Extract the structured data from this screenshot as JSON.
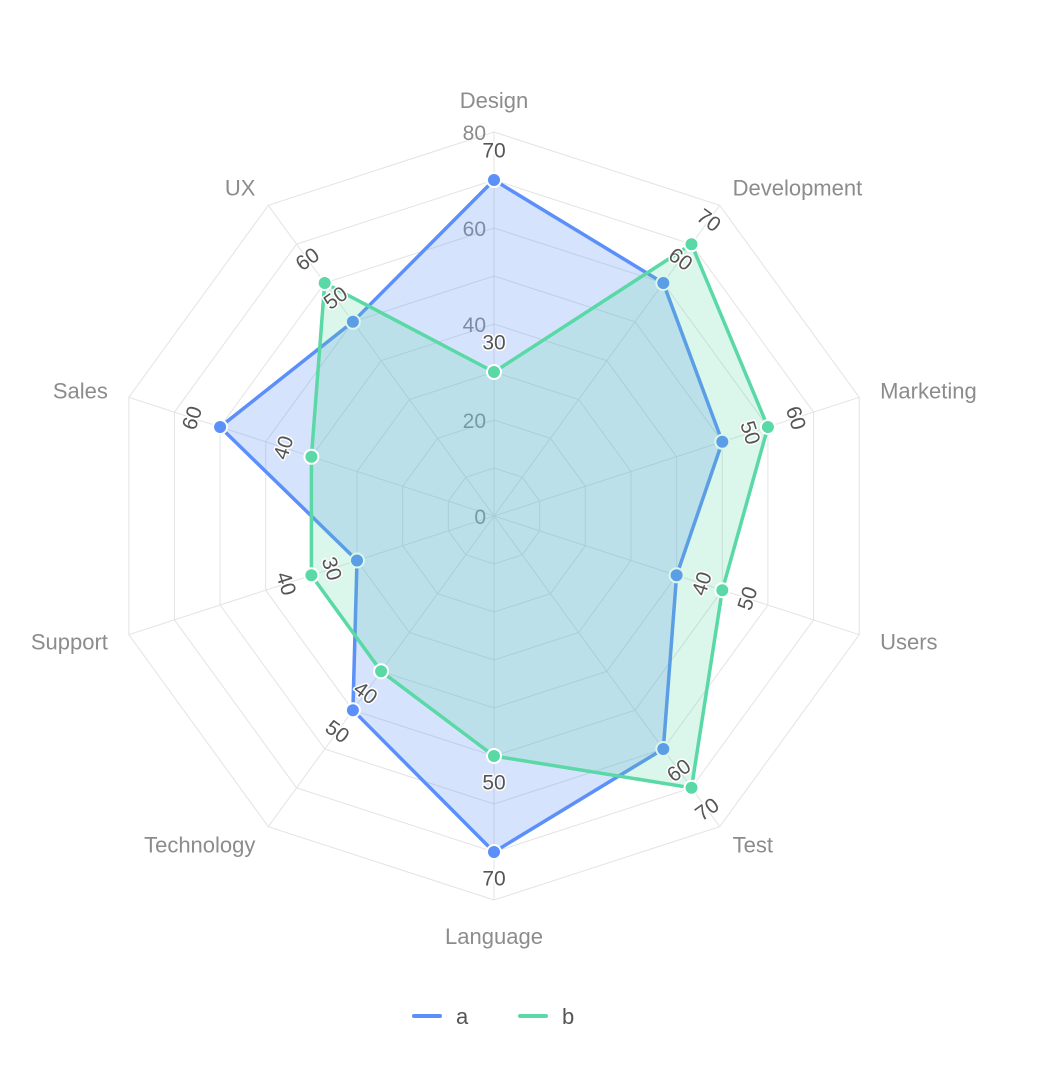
{
  "chart_data": {
    "type": "radar",
    "categories": [
      "Design",
      "Development",
      "Marketing",
      "Users",
      "Test",
      "Language",
      "Technology",
      "Support",
      "Sales",
      "UX"
    ],
    "series": [
      {
        "name": "a",
        "color": "#5b8ff9",
        "values": [
          70,
          60,
          50,
          40,
          60,
          70,
          50,
          30,
          60,
          50
        ]
      },
      {
        "name": "b",
        "color": "#5ad8a6",
        "values": [
          30,
          70,
          60,
          50,
          70,
          50,
          40,
          40,
          40,
          60
        ]
      }
    ],
    "radial_ticks": [
      "0",
      "20",
      "40",
      "60",
      "80"
    ],
    "rlim": [
      0,
      80
    ],
    "grid": true,
    "legend": "bottom-center"
  }
}
